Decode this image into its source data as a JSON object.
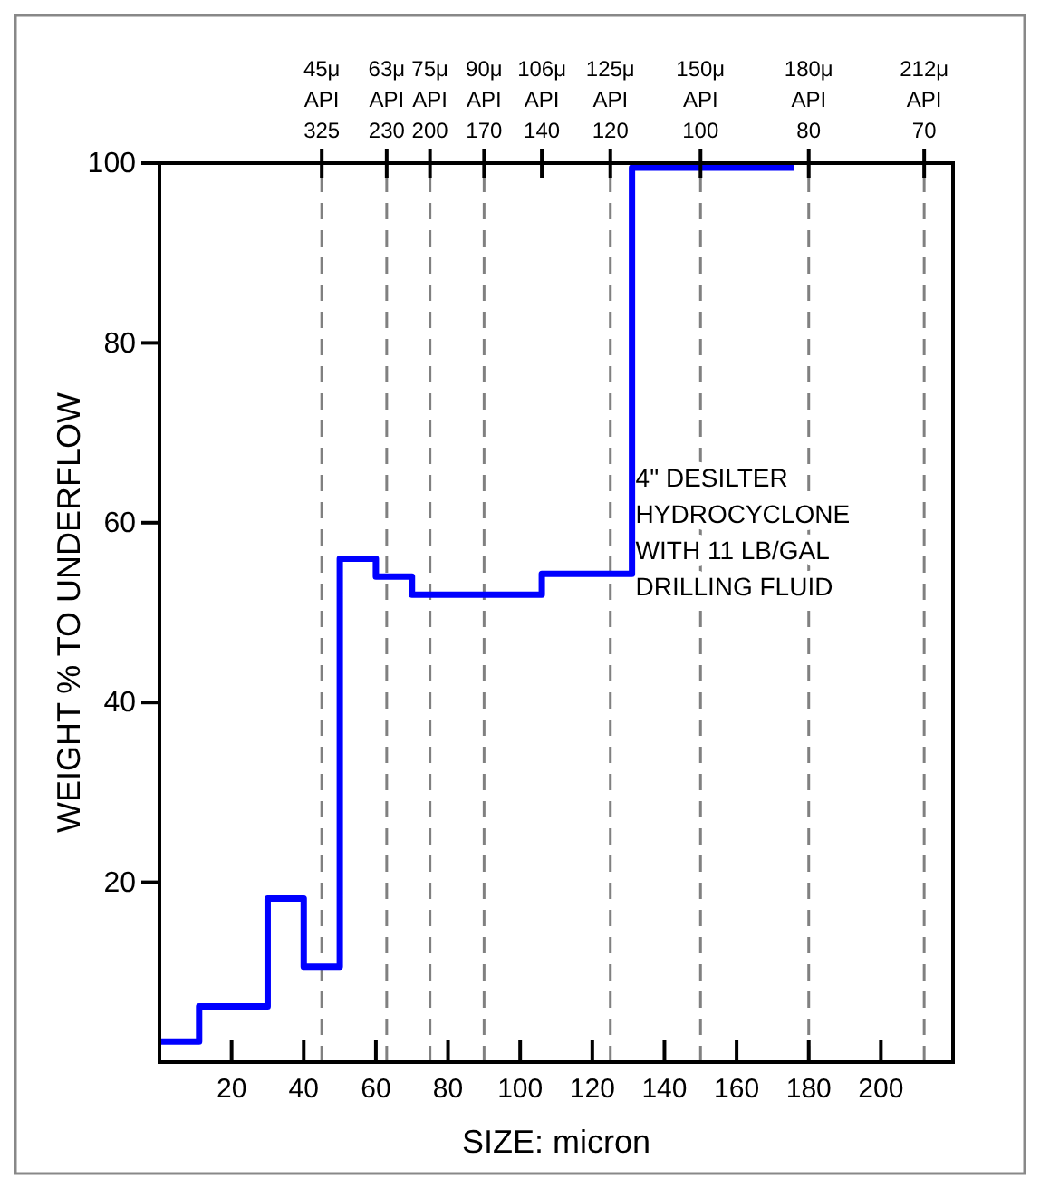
{
  "chart_data": {
    "type": "step",
    "xlabel": "SIZE: micron",
    "ylabel": "WEIGHT % TO UNDERFLOW",
    "x": [
      0,
      11,
      30,
      40,
      50,
      60,
      70,
      106,
      131,
      176
    ],
    "series": [
      {
        "color": "#0000ff",
        "values": [
          2.3,
          6.2,
          18.2,
          10.6,
          56,
          54,
          52,
          54.3,
          99.5,
          99.5
        ]
      }
    ],
    "xlim": [
      0,
      220
    ],
    "xticks": [
      20,
      40,
      60,
      80,
      100,
      120,
      140,
      160,
      180,
      200
    ],
    "ylim": [
      0,
      100
    ],
    "yticks": [
      20,
      40,
      60,
      80,
      100
    ],
    "ref_lines": [
      {
        "axis": "x",
        "value": 45,
        "label": "45μ\nAPI\n325",
        "color": "#808080",
        "line_style": "dashed"
      },
      {
        "axis": "x",
        "value": 63,
        "label": "63μ\nAPI\n230",
        "color": "#808080",
        "line_style": "dashed"
      },
      {
        "axis": "x",
        "value": 75,
        "label": "75μ\nAPI\n200",
        "color": "#808080",
        "line_style": "dashed"
      },
      {
        "axis": "x",
        "value": 90,
        "label": "90μ\nAPI\n170",
        "color": "#808080",
        "line_style": "dashed"
      },
      {
        "axis": "x",
        "value": 106,
        "label": "106μ\nAPI\n140"
      },
      {
        "axis": "x",
        "value": 125,
        "label": "125μ\nAPI\n120",
        "color": "#808080",
        "line_style": "dashed"
      },
      {
        "axis": "x",
        "value": 150,
        "label": "150μ\nAPI\n100",
        "color": "#808080",
        "line_style": "dashed"
      },
      {
        "axis": "x",
        "value": 180,
        "label": "180μ\nAPI\n80",
        "color": "#808080",
        "line_style": "dashed"
      },
      {
        "axis": "x",
        "value": 212,
        "label": "212μ\nAPI\n70",
        "color": "#808080",
        "line_style": "dashed"
      }
    ],
    "annotations": [
      "4\" DESILTER\nHYDROCYCLONE\nWITH 11 LB/GAL\nDRILLING FLUID"
    ],
    "grid": false,
    "line_style": "solid",
    "marker": "none"
  }
}
